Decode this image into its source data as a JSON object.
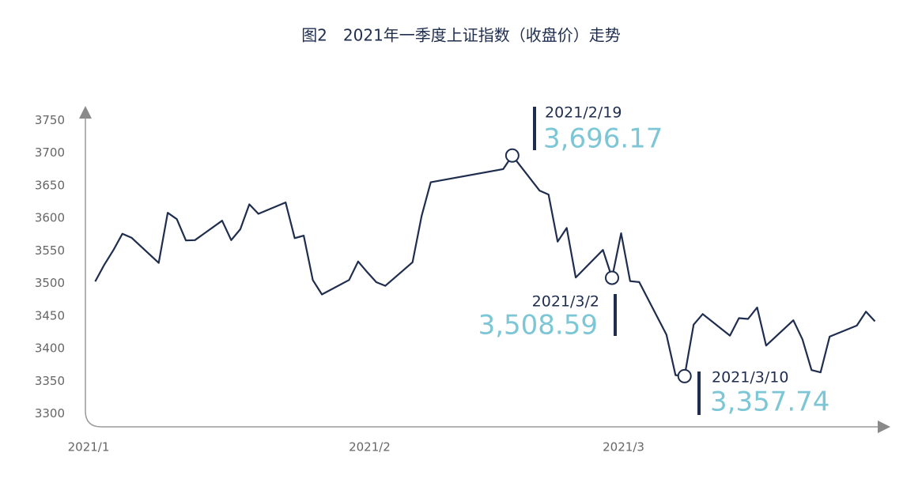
{
  "chart_data": {
    "type": "line",
    "title": "图2　2021年一季度上证指数（收盘价）走势",
    "x": [
      "2021/1/4",
      "2021/1/5",
      "2021/1/6",
      "2021/1/7",
      "2021/1/8",
      "2021/1/11",
      "2021/1/12",
      "2021/1/13",
      "2021/1/14",
      "2021/1/15",
      "2021/1/18",
      "2021/1/19",
      "2021/1/20",
      "2021/1/21",
      "2021/1/22",
      "2021/1/25",
      "2021/1/26",
      "2021/1/27",
      "2021/1/28",
      "2021/1/29",
      "2021/2/1",
      "2021/2/2",
      "2021/2/3",
      "2021/2/4",
      "2021/2/5",
      "2021/2/8",
      "2021/2/9",
      "2021/2/10",
      "2021/2/18",
      "2021/2/19",
      "2021/2/22",
      "2021/2/23",
      "2021/2/24",
      "2021/2/25",
      "2021/2/26",
      "2021/3/1",
      "2021/3/2",
      "2021/3/3",
      "2021/3/4",
      "2021/3/5",
      "2021/3/8",
      "2021/3/9",
      "2021/3/10",
      "2021/3/11",
      "2021/3/12",
      "2021/3/15",
      "2021/3/16",
      "2021/3/17",
      "2021/3/18",
      "2021/3/19",
      "2021/3/22",
      "2021/3/23",
      "2021/3/24",
      "2021/3/25",
      "2021/3/26",
      "2021/3/29",
      "2021/3/30",
      "2021/3/31"
    ],
    "series": [
      {
        "color": "#1f2d4e",
        "values": [
          3502.96,
          3528.68,
          3550.88,
          3576.2,
          3570.11,
          3531.5,
          3608.34,
          3598.65,
          3565.9,
          3566.38,
          3596.22,
          3566.38,
          3583.09,
          3621.26,
          3606.75,
          3624.24,
          3569.43,
          3573.34,
          3505.18,
          3483.07,
          3505.28,
          3533.68,
          3517.31,
          3501.86,
          3496.33,
          3532.44,
          3603.49,
          3655.09,
          3675.36,
          3696.17,
          3642.44,
          3636.36,
          3564.08,
          3585.05,
          3509.08,
          3551.4,
          3508.59,
          3576.9,
          3503.49,
          3501.99,
          3421.41,
          3359.29,
          3357.74,
          3436.83,
          3453.08,
          3419.95,
          3446.73,
          3445.55,
          3463.07,
          3404.66,
          3443.44,
          3414.2,
          3367.06,
          3363.59,
          3418.33,
          3435.3,
          3456.68,
          3441.91
        ]
      }
    ],
    "annotations": [
      {
        "label": "2021/2/19",
        "text": "3,696.17"
      },
      {
        "label": "2021/3/2",
        "text": "3,508.59"
      },
      {
        "label": "2021/3/10",
        "text": "3,357.74"
      }
    ],
    "annotation_color": "#7cc6d6",
    "xlim": [
      "2021/1/1",
      "2021/4/1"
    ],
    "xticks": [
      {
        "value": "2021/1/1",
        "label": "2021/1"
      },
      {
        "value": "2021/2/1",
        "label": "2021/2"
      },
      {
        "value": "2021/3/1",
        "label": "2021/3"
      }
    ],
    "ylim": [
      3280,
      3765
    ],
    "yticks": [
      3300,
      3350,
      3400,
      3450,
      3500,
      3550,
      3600,
      3650,
      3700,
      3750
    ]
  }
}
